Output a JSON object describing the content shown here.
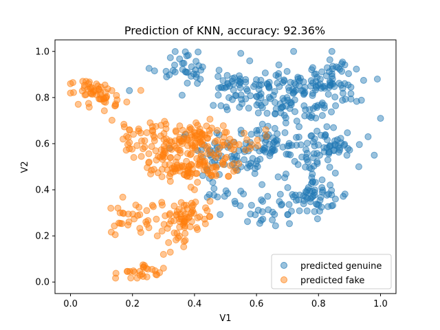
{
  "chart_data": {
    "type": "scatter",
    "title": "Prediction of KNN, accuracy: 92.36%",
    "xlabel": "V1",
    "ylabel": "V2",
    "xlim": [
      -0.05,
      1.05
    ],
    "ylim": [
      -0.05,
      1.05
    ],
    "xticks": [
      0.0,
      0.2,
      0.4,
      0.6,
      0.8,
      1.0
    ],
    "yticks": [
      0.0,
      0.2,
      0.4,
      0.6,
      0.8,
      1.0
    ],
    "xtick_labels": [
      "0.0",
      "0.2",
      "0.4",
      "0.6",
      "0.8",
      "1.0"
    ],
    "ytick_labels": [
      "0.0",
      "0.2",
      "0.4",
      "0.6",
      "0.8",
      "1.0"
    ],
    "grid": false,
    "legend_position": "lower-right",
    "series": [
      {
        "name": "predicted genuine",
        "color": "#1f77b4",
        "clusters": [
          {
            "cx": 0.36,
            "cy": 0.94,
            "sx": 0.05,
            "sy": 0.04,
            "n": 30
          },
          {
            "cx": 0.55,
            "cy": 0.84,
            "sx": 0.06,
            "sy": 0.06,
            "n": 70
          },
          {
            "cx": 0.72,
            "cy": 0.82,
            "sx": 0.07,
            "sy": 0.07,
            "n": 90
          },
          {
            "cx": 0.85,
            "cy": 0.85,
            "sx": 0.05,
            "sy": 0.06,
            "n": 60
          },
          {
            "cx": 0.65,
            "cy": 0.6,
            "sx": 0.07,
            "sy": 0.05,
            "n": 70
          },
          {
            "cx": 0.82,
            "cy": 0.58,
            "sx": 0.06,
            "sy": 0.05,
            "n": 60
          },
          {
            "cx": 0.52,
            "cy": 0.55,
            "sx": 0.06,
            "sy": 0.05,
            "n": 40
          },
          {
            "cx": 0.78,
            "cy": 0.38,
            "sx": 0.06,
            "sy": 0.04,
            "n": 60
          },
          {
            "cx": 0.65,
            "cy": 0.31,
            "sx": 0.05,
            "sy": 0.04,
            "n": 30
          },
          {
            "cx": 0.47,
            "cy": 0.4,
            "sx": 0.03,
            "sy": 0.05,
            "n": 15
          }
        ],
        "points": [
          [
            0.19,
            0.83
          ],
          [
            0.31,
            0.89
          ],
          [
            0.32,
            0.58
          ],
          [
            0.36,
            0.81
          ],
          [
            0.37,
            0.64
          ],
          [
            0.41,
            0.57
          ],
          [
            0.53,
            0.35
          ],
          [
            1.0,
            0.71
          ],
          [
            0.99,
            0.88
          ],
          [
            0.98,
            0.55
          ],
          [
            0.96,
            0.63
          ],
          [
            0.93,
            0.5
          ]
        ]
      },
      {
        "name": "predicted fake",
        "color": "#ff7f0e",
        "clusters": [
          {
            "cx": 0.07,
            "cy": 0.82,
            "sx": 0.04,
            "sy": 0.03,
            "n": 40
          },
          {
            "cx": 0.14,
            "cy": 0.8,
            "sx": 0.03,
            "sy": 0.03,
            "n": 15
          },
          {
            "cx": 0.25,
            "cy": 0.62,
            "sx": 0.06,
            "sy": 0.04,
            "n": 50
          },
          {
            "cx": 0.38,
            "cy": 0.63,
            "sx": 0.05,
            "sy": 0.03,
            "n": 50
          },
          {
            "cx": 0.5,
            "cy": 0.61,
            "sx": 0.06,
            "sy": 0.03,
            "n": 40
          },
          {
            "cx": 0.35,
            "cy": 0.51,
            "sx": 0.05,
            "sy": 0.04,
            "n": 70
          },
          {
            "cx": 0.45,
            "cy": 0.51,
            "sx": 0.05,
            "sy": 0.03,
            "n": 40
          },
          {
            "cx": 0.37,
            "cy": 0.27,
            "sx": 0.05,
            "sy": 0.05,
            "n": 70
          },
          {
            "cx": 0.22,
            "cy": 0.27,
            "sx": 0.04,
            "sy": 0.04,
            "n": 30
          },
          {
            "cx": 0.22,
            "cy": 0.04,
            "sx": 0.04,
            "sy": 0.02,
            "n": 25
          }
        ],
        "points": [
          [
            0.0,
            0.86
          ],
          [
            0.05,
            0.87
          ],
          [
            0.19,
            0.66
          ],
          [
            0.4,
            0.4
          ],
          [
            0.45,
            0.35
          ],
          [
            0.3,
            0.12
          ],
          [
            0.3,
            0.06
          ],
          [
            0.28,
            0.2
          ],
          [
            0.13,
            0.32
          ],
          [
            0.16,
            0.3
          ],
          [
            0.58,
            0.58
          ],
          [
            0.63,
            0.66
          ]
        ]
      }
    ]
  }
}
